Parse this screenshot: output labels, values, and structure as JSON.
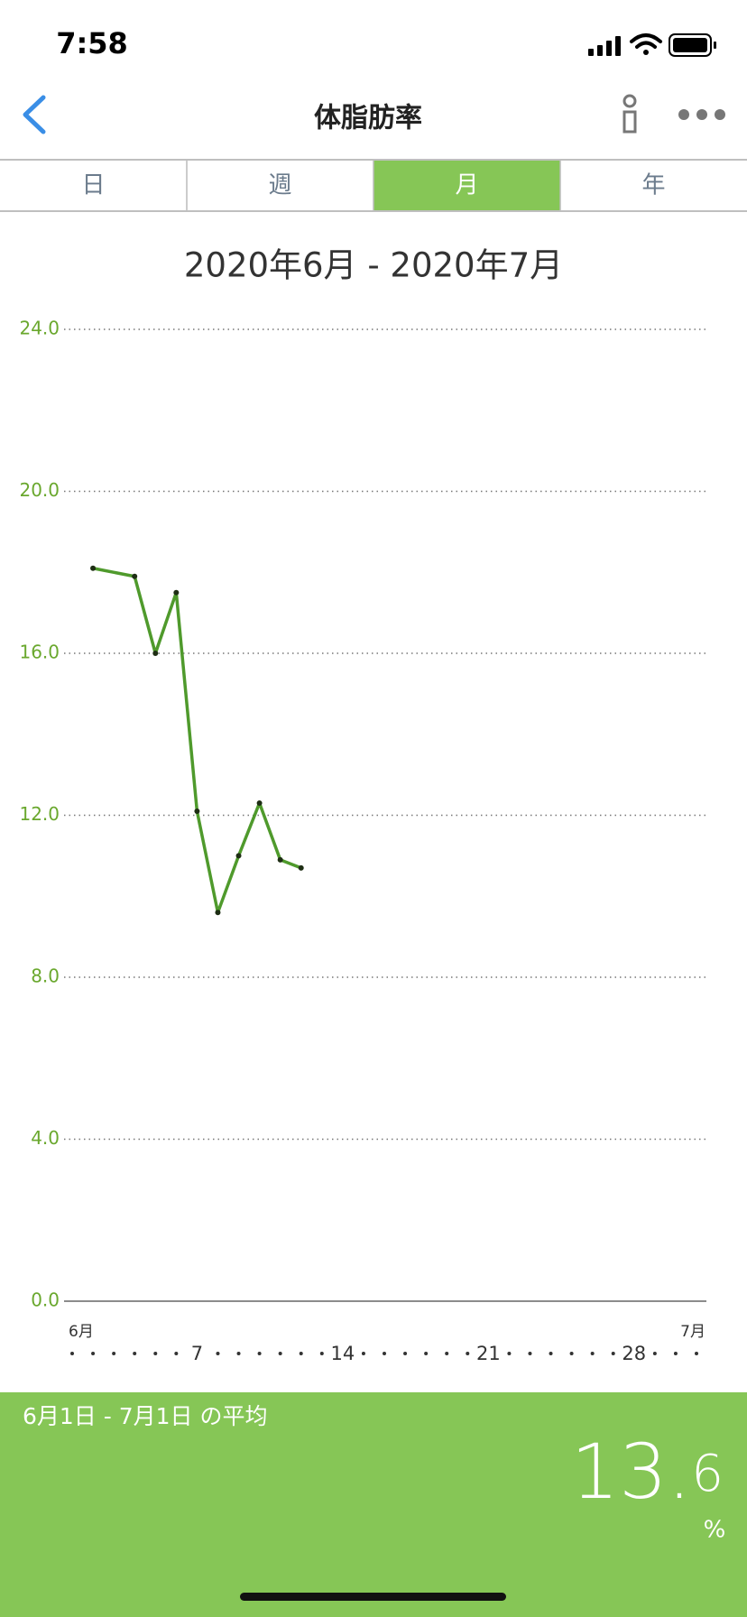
{
  "status_bar": {
    "time": "7:58"
  },
  "nav": {
    "title": "体脂肪率"
  },
  "tabs": {
    "items": [
      "日",
      "週",
      "月",
      "年"
    ],
    "active": "月"
  },
  "chart_data": {
    "type": "line",
    "title": "2020年6月 - 2020年7月",
    "x": [
      2,
      4,
      5,
      6,
      7,
      8,
      9,
      10,
      11,
      12
    ],
    "values": [
      18.1,
      17.9,
      16.0,
      17.5,
      12.1,
      9.6,
      11.0,
      12.3,
      10.9,
      10.7
    ],
    "color": "#4f9a2c",
    "xlim": [
      1,
      31
    ],
    "xticks": [
      {
        "value": 1,
        "label": "6月"
      },
      7,
      14,
      21,
      28,
      {
        "value": 31,
        "label": "7月"
      }
    ],
    "ylim": [
      0,
      24
    ],
    "yticks": [
      {
        "value": 0,
        "label": "0.0"
      },
      {
        "value": 4,
        "label": "4.0"
      },
      {
        "value": 8,
        "label": "8.0"
      },
      {
        "value": 12,
        "label": "12.0"
      },
      {
        "value": 16,
        "label": "16.0"
      },
      {
        "value": 20,
        "label": "20.0"
      },
      {
        "value": 24,
        "label": "24.0"
      }
    ],
    "grid": true
  },
  "summary": {
    "label": "6月1日 - 7月1日 の平均",
    "whole": "13.",
    "fraction": "6",
    "unit": "%"
  }
}
